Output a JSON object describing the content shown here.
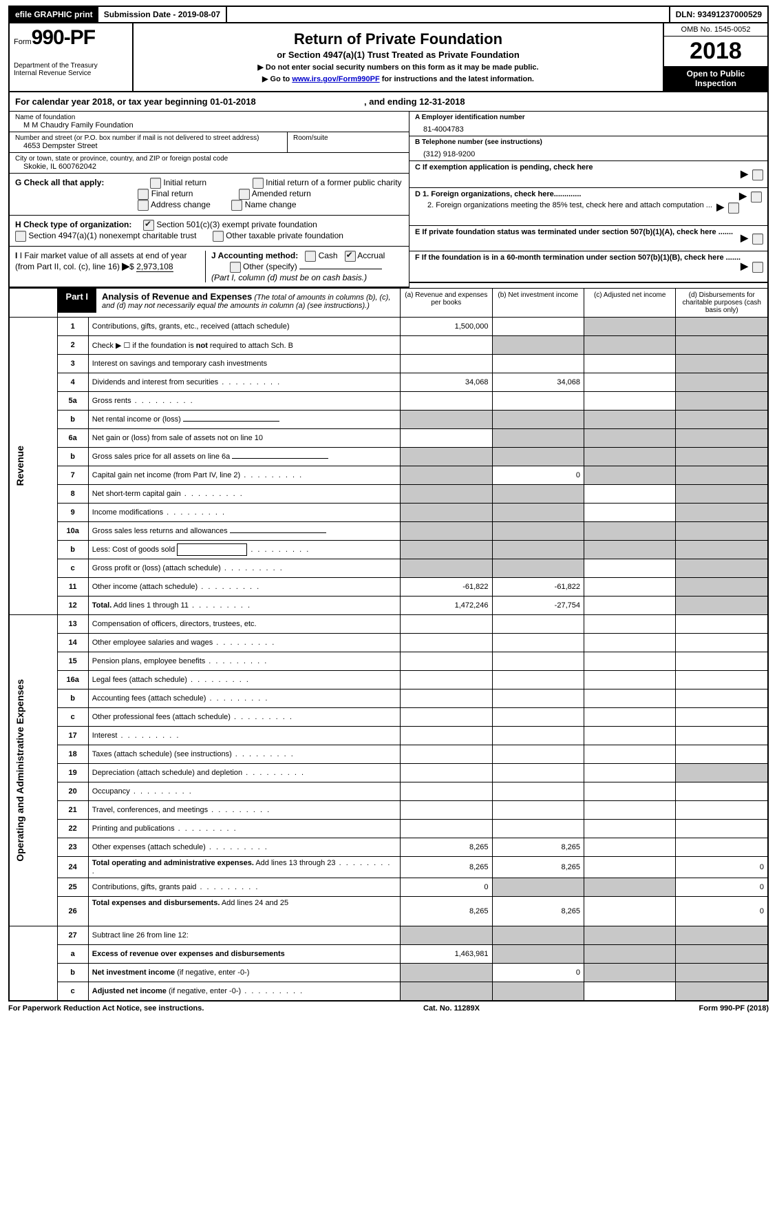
{
  "topbar": {
    "efile": "efile GRAPHIC print",
    "submission": "Submission Date - 2019-08-07",
    "dln": "DLN: 93491237000529"
  },
  "header": {
    "form_prefix": "Form",
    "form_number": "990-PF",
    "dept1": "Department of the Treasury",
    "dept2": "Internal Revenue Service",
    "title": "Return of Private Foundation",
    "subtitle": "or Section 4947(a)(1) Trust Treated as Private Foundation",
    "note1": "▶ Do not enter social security numbers on this form as it may be made public.",
    "note2_pre": "▶ Go to ",
    "note2_link": "www.irs.gov/Form990PF",
    "note2_post": " for instructions and the latest information.",
    "omb": "OMB No. 1545-0052",
    "year": "2018",
    "inspection": "Open to Public Inspection"
  },
  "calyear": {
    "text": "For calendar year 2018, or tax year beginning 01-01-2018",
    "mid": ", and ending 12-31-2018"
  },
  "info": {
    "name_label": "Name of foundation",
    "name": "M M Chaudry Family Foundation",
    "addr_label": "Number and street (or P.O. box number if mail is not delivered to street address)",
    "addr": "4653 Dempster Street",
    "room_label": "Room/suite",
    "city_label": "City or town, state or province, country, and ZIP or foreign postal code",
    "city": "Skokie, IL   600762042",
    "a_label": "A Employer identification number",
    "a_val": "81-4004783",
    "b_label": "B Telephone number (see instructions)",
    "b_val": "(312) 918-9200",
    "c_label": "C  If exemption application is pending, check here",
    "d1": "D 1. Foreign organizations, check here.............",
    "d2": "2. Foreign organizations meeting the 85% test, check here and attach computation ...",
    "e_label": "E   If private foundation status was terminated under section 507(b)(1)(A), check here .......",
    "f_label": "F   If the foundation is in a 60-month termination under section 507(b)(1)(B), check here .......",
    "g_label": "G Check all that apply:",
    "g_opts": [
      "Initial return",
      "Initial return of a former public charity",
      "Final return",
      "Amended return",
      "Address change",
      "Name change"
    ],
    "h_label": "H Check type of organization:",
    "h_opt1": "Section 501(c)(3) exempt private foundation",
    "h_opt2": "Section 4947(a)(1) nonexempt charitable trust",
    "h_opt3": "Other taxable private foundation",
    "i_label": "I Fair market value of all assets at end of year (from Part II, col. (c), line 16)",
    "i_val": "2,973,108",
    "j_label": "J Accounting method:",
    "j_cash": "Cash",
    "j_accrual": "Accrual",
    "j_other": "Other (specify)",
    "j_note": "(Part I, column (d) must be on cash basis.)"
  },
  "part1": {
    "label": "Part I",
    "title": "Analysis of Revenue and Expenses",
    "title_note": "(The total of amounts in columns (b), (c), and (d) may not necessarily equal the amounts in column (a) (see instructions).)",
    "cols": {
      "a": "(a)     Revenue and expenses per books",
      "b": "(b)     Net investment income",
      "c": "(c)     Adjusted net income",
      "d": "(d)     Disbursements for charitable purposes (cash basis only)"
    }
  },
  "sections": {
    "revenue": "Revenue",
    "expenses": "Operating and Administrative Expenses"
  },
  "rows": [
    {
      "n": "1",
      "desc": "Contributions, gifts, grants, etc., received (attach schedule)",
      "a": "1,500,000",
      "b": "",
      "c_shade": true,
      "d_shade": true
    },
    {
      "n": "2",
      "desc": "Check ▶ ☐ if the foundation is <b>not</b> required to attach Sch. B",
      "a": "",
      "b_shade": true,
      "c_shade": true,
      "d_shade": true
    },
    {
      "n": "3",
      "desc": "Interest on savings and temporary cash investments",
      "a": "",
      "b": "",
      "c": "",
      "d_shade": true
    },
    {
      "n": "4",
      "desc": "Dividends and interest from securities",
      "dots": true,
      "a": "34,068",
      "b": "34,068",
      "c": "",
      "d_shade": true
    },
    {
      "n": "5a",
      "desc": "Gross rents",
      "dots": true,
      "a": "",
      "b": "",
      "c": "",
      "d_shade": true
    },
    {
      "n": "b",
      "desc": "Net rental income or (loss)",
      "inline_field": true,
      "a_shade": true,
      "b_shade": true,
      "c_shade": true,
      "d_shade": true
    },
    {
      "n": "6a",
      "desc": "Net gain or (loss) from sale of assets not on line 10",
      "a": "",
      "b_shade": true,
      "c_shade": true,
      "d_shade": true
    },
    {
      "n": "b",
      "desc": "Gross sales price for all assets on line 6a",
      "inline_field": true,
      "a_shade": true,
      "b_shade": true,
      "c_shade": true,
      "d_shade": true
    },
    {
      "n": "7",
      "desc": "Capital gain net income (from Part IV, line 2)",
      "dots": true,
      "a_shade": true,
      "b": "0",
      "c_shade": true,
      "d_shade": true
    },
    {
      "n": "8",
      "desc": "Net short-term capital gain",
      "dots": true,
      "a_shade": true,
      "b_shade": true,
      "c": "",
      "d_shade": true
    },
    {
      "n": "9",
      "desc": "Income modifications",
      "dots": true,
      "a_shade": true,
      "b_shade": true,
      "c": "",
      "d_shade": true
    },
    {
      "n": "10a",
      "desc": "Gross sales less returns and allowances",
      "inline_field": true,
      "a_shade": true,
      "b_shade": true,
      "c_shade": true,
      "d_shade": true
    },
    {
      "n": "b",
      "desc": "Less: Cost of goods sold",
      "dots": true,
      "inline_box": true,
      "a_shade": true,
      "b_shade": true,
      "c_shade": true,
      "d_shade": true
    },
    {
      "n": "c",
      "desc": "Gross profit or (loss) (attach schedule)",
      "dots": true,
      "a_shade": true,
      "b_shade": true,
      "c": "",
      "d_shade": true
    },
    {
      "n": "11",
      "desc": "Other income (attach schedule)",
      "dots": true,
      "a": "-61,822",
      "b": "-61,822",
      "c": "",
      "d_shade": true
    },
    {
      "n": "12",
      "desc": "<b>Total.</b> Add lines 1 through 11",
      "dots": true,
      "a": "1,472,246",
      "b": "-27,754",
      "c": "",
      "d_shade": true
    }
  ],
  "exp_rows": [
    {
      "n": "13",
      "desc": "Compensation of officers, directors, trustees, etc."
    },
    {
      "n": "14",
      "desc": "Other employee salaries and wages",
      "dots": true
    },
    {
      "n": "15",
      "desc": "Pension plans, employee benefits",
      "dots": true
    },
    {
      "n": "16a",
      "desc": "Legal fees (attach schedule)",
      "dots": true
    },
    {
      "n": "b",
      "desc": "Accounting fees (attach schedule)",
      "dots": true
    },
    {
      "n": "c",
      "desc": "Other professional fees (attach schedule)",
      "dots": true
    },
    {
      "n": "17",
      "desc": "Interest",
      "dots": true
    },
    {
      "n": "18",
      "desc": "Taxes (attach schedule) (see instructions)",
      "dots": true
    },
    {
      "n": "19",
      "desc": "Depreciation (attach schedule) and depletion",
      "dots": true,
      "d_shade": true
    },
    {
      "n": "20",
      "desc": "Occupancy",
      "dots": true
    },
    {
      "n": "21",
      "desc": "Travel, conferences, and meetings",
      "dots": true
    },
    {
      "n": "22",
      "desc": "Printing and publications",
      "dots": true
    },
    {
      "n": "23",
      "desc": "Other expenses (attach schedule)",
      "dots": true,
      "a": "8,265",
      "b": "8,265"
    },
    {
      "n": "24",
      "desc": "<b>Total operating and administrative expenses.</b> Add lines 13 through 23",
      "dots": true,
      "a": "8,265",
      "b": "8,265",
      "d": "0"
    },
    {
      "n": "25",
      "desc": "Contributions, gifts, grants paid",
      "dots": true,
      "a": "0",
      "b_shade": true,
      "c_shade": true,
      "d": "0"
    },
    {
      "n": "26",
      "desc": "<b>Total expenses and disbursements.</b> Add lines 24 and 25",
      "a": "8,265",
      "b": "8,265",
      "d": "0",
      "tall": true
    }
  ],
  "final_rows": [
    {
      "n": "27",
      "desc": "Subtract line 26 from line 12:",
      "a_shade": true,
      "b_shade": true,
      "c_shade": true,
      "d_shade": true
    },
    {
      "n": "a",
      "desc": "<b>Excess of revenue over expenses and disbursements</b>",
      "a": "1,463,981",
      "b_shade": true,
      "c_shade": true,
      "d_shade": true
    },
    {
      "n": "b",
      "desc": "<b>Net investment income</b> (if negative, enter -0-)",
      "a_shade": true,
      "b": "0",
      "c_shade": true,
      "d_shade": true
    },
    {
      "n": "c",
      "desc": "<b>Adjusted net income</b> (if negative, enter -0-)",
      "dots": true,
      "a_shade": true,
      "b_shade": true,
      "d_shade": true
    }
  ],
  "footer": {
    "left": "For Paperwork Reduction Act Notice, see instructions.",
    "mid": "Cat. No. 11289X",
    "right": "Form 990-PF (2018)"
  }
}
